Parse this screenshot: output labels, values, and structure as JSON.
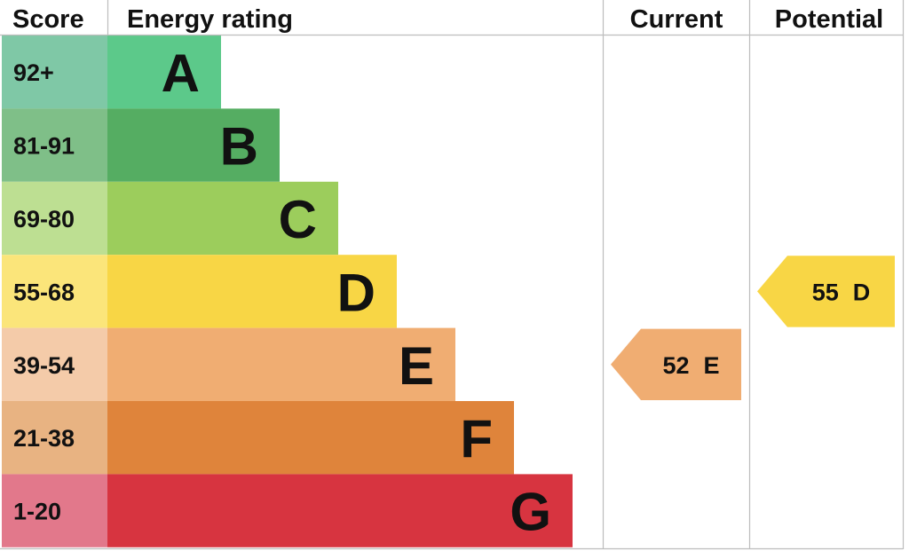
{
  "headers": {
    "score": "Score",
    "energy_rating": "Energy rating",
    "current": "Current",
    "potential": "Potential"
  },
  "chart_data": {
    "type": "bar",
    "categories": [
      "A",
      "B",
      "C",
      "D",
      "E",
      "F",
      "G"
    ],
    "score_ranges": [
      "92+",
      "81-91",
      "69-80",
      "55-68",
      "39-54",
      "21-38",
      "1-20"
    ],
    "band_colors": [
      "#5cc98a",
      "#55ad62",
      "#9ccd5c",
      "#f8d645",
      "#f0ad72",
      "#df843b",
      "#d73440"
    ],
    "score_cell_colors": [
      "#7fc8a6",
      "#7fbf88",
      "#bddf92",
      "#fbe57a",
      "#f4cba9",
      "#e8b382",
      "#e2788b"
    ],
    "current": {
      "score": 52,
      "band": "E",
      "label_score": "52",
      "label_band": "E"
    },
    "potential": {
      "score": 55,
      "band": "D",
      "label_score": "55",
      "label_band": "D"
    }
  }
}
